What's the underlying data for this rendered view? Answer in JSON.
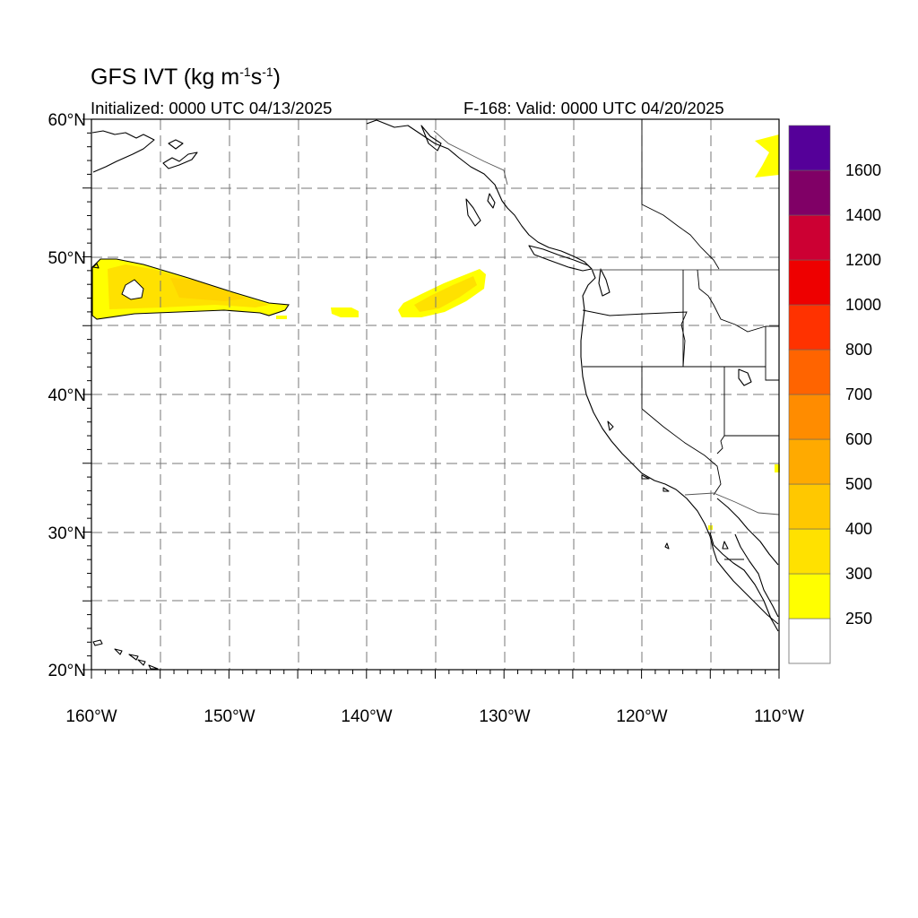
{
  "title": {
    "prefix": "GFS IVT (kg m",
    "exp1": "-1",
    "mid": "s",
    "exp2": "-1",
    "suffix": ")"
  },
  "subtitle_left": "Initialized: 0000 UTC 04/13/2025",
  "subtitle_right": "F-168: Valid: 0000 UTC 04/20/2025",
  "lat_labels": [
    "60°N",
    "50°N",
    "40°N",
    "30°N",
    "20°N"
  ],
  "lon_labels": [
    "160°W",
    "150°W",
    "140°W",
    "130°W",
    "120°W",
    "110°W"
  ],
  "colorbar": {
    "labels": [
      "250",
      "300",
      "400",
      "500",
      "600",
      "700",
      "800",
      "1000",
      "1200",
      "1400",
      "1600"
    ],
    "colors": [
      "#ffff00",
      "#ffe100",
      "#ffc800",
      "#ffaa00",
      "#ff8c00",
      "#ff6400",
      "#ff3200",
      "#ee0000",
      "#cc0033",
      "#800066",
      "#550099"
    ]
  },
  "map_extent": {
    "lon": [
      -160,
      -110
    ],
    "lat": [
      20,
      60
    ]
  }
}
